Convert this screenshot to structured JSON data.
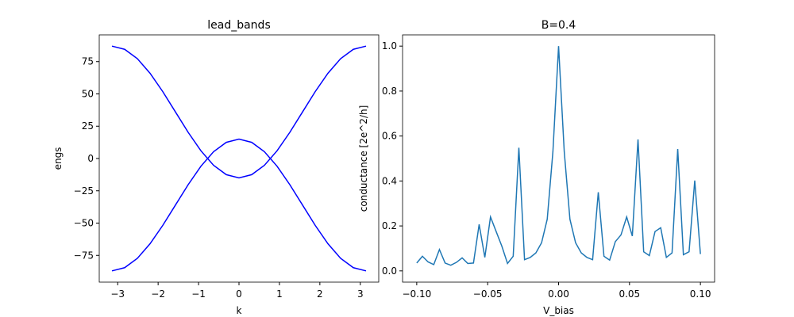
{
  "chart_data": [
    {
      "type": "line",
      "title": "lead_bands",
      "x_label": "k",
      "y_label": "engs",
      "x": [
        -3.1416,
        -2.8274,
        -2.5133,
        -2.1991,
        -1.885,
        -1.5708,
        -1.2566,
        -0.9425,
        -0.6283,
        -0.3142,
        0,
        0.3142,
        0.6283,
        0.9425,
        1.2566,
        1.5708,
        1.885,
        2.1991,
        2.5133,
        2.8274,
        3.1416
      ],
      "series": [
        {
          "color": "#0000ff",
          "values": [
            87,
            84.51,
            77.26,
            65.98,
            51.76,
            36,
            20.24,
            6.02,
            -5.26,
            -12.51,
            -15,
            -12.51,
            -5.26,
            6.02,
            20.24,
            36,
            51.76,
            65.98,
            77.26,
            84.51,
            87
          ]
        },
        {
          "color": "#0000ff",
          "values": [
            -87,
            -84.51,
            -77.26,
            -65.98,
            -51.76,
            -36,
            -20.24,
            -6.02,
            5.26,
            12.51,
            15,
            12.51,
            5.26,
            -6.02,
            -20.24,
            -36,
            -51.76,
            -65.98,
            -77.26,
            -84.51,
            -87
          ]
        }
      ],
      "xlim": [
        -3.456,
        3.456
      ],
      "ylim": [
        -95.7,
        95.7
      ],
      "xticks": [
        {
          "value": -3,
          "label": "−3"
        },
        {
          "value": -2,
          "label": "−2"
        },
        {
          "value": -1,
          "label": "−1"
        },
        0,
        1,
        2,
        3
      ],
      "yticks": [
        {
          "value": -75,
          "label": "−75"
        },
        {
          "value": -50,
          "label": "−50"
        },
        {
          "value": -25,
          "label": "−25"
        },
        0,
        25,
        50,
        75
      ]
    },
    {
      "type": "line",
      "title": "B=0.4",
      "x_label": "V_bias",
      "y_label": "conductance [2e^2/h]",
      "x": [
        -0.1,
        -0.096,
        -0.092,
        -0.088,
        -0.084,
        -0.08,
        -0.076,
        -0.072,
        -0.068,
        -0.064,
        -0.06,
        -0.056,
        -0.052,
        -0.048,
        -0.044,
        -0.04,
        -0.036,
        -0.032,
        -0.028,
        -0.024,
        -0.02,
        -0.016,
        -0.012,
        -0.008,
        -0.004,
        0,
        0.004,
        0.008,
        0.012,
        0.016,
        0.02,
        0.024,
        0.028,
        0.032,
        0.036,
        0.04,
        0.044,
        0.048,
        0.052,
        0.056,
        0.06,
        0.064,
        0.068,
        0.072,
        0.076,
        0.08,
        0.084,
        0.088,
        0.092,
        0.096,
        0.1
      ],
      "series": [
        {
          "color": "#1f77b4",
          "values": [
            0.035,
            0.065,
            0.04,
            0.028,
            0.095,
            0.035,
            0.025,
            0.038,
            0.058,
            0.033,
            0.035,
            0.207,
            0.06,
            0.24,
            0.175,
            0.11,
            0.033,
            0.065,
            0.548,
            0.05,
            0.06,
            0.08,
            0.125,
            0.23,
            0.53,
            1.0,
            0.53,
            0.23,
            0.125,
            0.08,
            0.06,
            0.05,
            0.35,
            0.065,
            0.048,
            0.13,
            0.16,
            0.24,
            0.155,
            0.585,
            0.085,
            0.068,
            0.175,
            0.192,
            0.06,
            0.08,
            0.542,
            0.072,
            0.085,
            0.402,
            0.075
          ]
        }
      ],
      "xlim": [
        -0.11,
        0.11
      ],
      "ylim": [
        -0.05,
        1.05
      ],
      "xticks": [
        {
          "value": -0.1,
          "label": "−0.10"
        },
        {
          "value": -0.05,
          "label": "−0.05"
        },
        {
          "value": 0,
          "label": "0.00"
        },
        {
          "value": 0.05,
          "label": "0.05"
        },
        {
          "value": 0.1,
          "label": "0.10"
        }
      ],
      "yticks": [
        {
          "value": 0,
          "label": "0.0"
        },
        {
          "value": 0.2,
          "label": "0.2"
        },
        {
          "value": 0.4,
          "label": "0.4"
        },
        {
          "value": 0.6,
          "label": "0.6"
        },
        {
          "value": 0.8,
          "label": "0.8"
        },
        {
          "value": 1.0,
          "label": "1.0"
        }
      ]
    }
  ]
}
